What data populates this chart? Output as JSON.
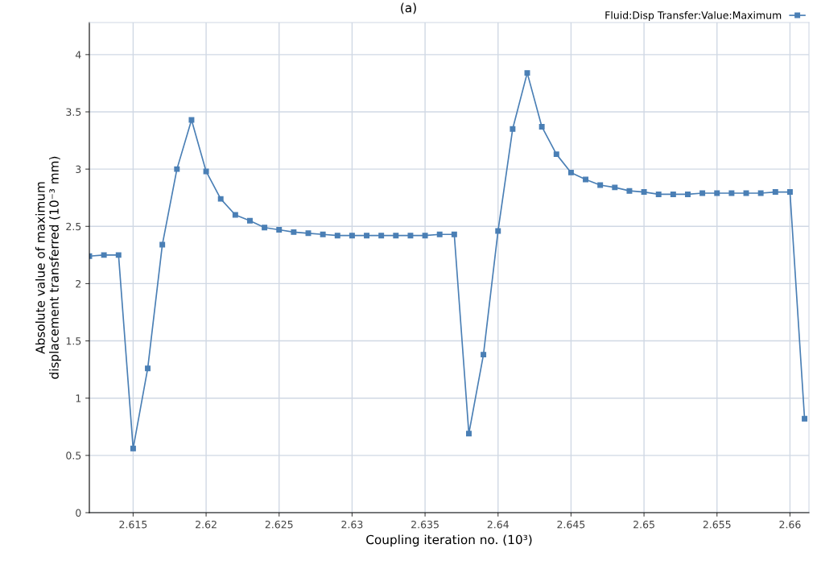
{
  "chart_data": {
    "type": "line",
    "title": "(a)",
    "xlabel": "Coupling iteration no. (10³)",
    "ylabel": "Absolute value of maximum\ndisplacement transferred (10⁻³ mm)",
    "x": [
      2.612,
      2.613,
      2.614,
      2.615,
      2.616,
      2.617,
      2.618,
      2.619,
      2.62,
      2.621,
      2.622,
      2.623,
      2.624,
      2.625,
      2.626,
      2.627,
      2.628,
      2.629,
      2.63,
      2.631,
      2.632,
      2.633,
      2.634,
      2.635,
      2.636,
      2.637,
      2.638,
      2.639,
      2.64,
      2.641,
      2.642,
      2.643,
      2.644,
      2.645,
      2.646,
      2.647,
      2.648,
      2.649,
      2.65,
      2.651,
      2.652,
      2.653,
      2.654,
      2.655,
      2.656,
      2.657,
      2.658,
      2.659,
      2.66,
      2.661
    ],
    "series": [
      {
        "name": "Fluid:Disp Transfer:Value:Maximum",
        "color": "#4a7fb5",
        "values": [
          2.24,
          2.25,
          2.25,
          0.56,
          1.26,
          2.34,
          3.0,
          3.43,
          2.98,
          2.74,
          2.6,
          2.55,
          2.49,
          2.47,
          2.45,
          2.44,
          2.43,
          2.42,
          2.42,
          2.42,
          2.42,
          2.42,
          2.42,
          2.42,
          2.43,
          2.43,
          0.69,
          1.38,
          2.46,
          3.35,
          3.84,
          3.37,
          3.13,
          2.97,
          2.91,
          2.86,
          2.84,
          2.81,
          2.8,
          2.78,
          2.78,
          2.78,
          2.79,
          2.79,
          2.79,
          2.79,
          2.79,
          2.8,
          2.8,
          0.82
        ]
      }
    ],
    "xlim": [
      2.612,
      2.6613
    ],
    "ylim": [
      0,
      4.28
    ],
    "xticks": [
      2.615,
      2.62,
      2.625,
      2.63,
      2.635,
      2.64,
      2.645,
      2.65,
      2.655,
      2.66
    ],
    "yticks": [
      0,
      0.5,
      1,
      1.5,
      2,
      2.5,
      3,
      3.5,
      4
    ],
    "grid": true,
    "legend": "top right",
    "marker": "square",
    "line_style": "solid"
  }
}
